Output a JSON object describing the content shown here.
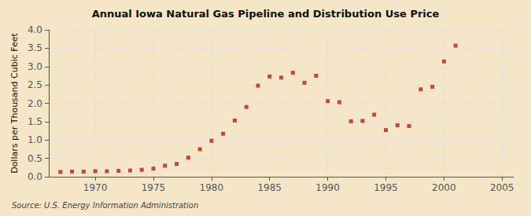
{
  "chart_data": {
    "type": "scatter",
    "title": "Annual Iowa Natural Gas Pipeline and Distribution Use Price",
    "ylabel": "Dollars per Thousand Cubic Feet",
    "annotations": [
      "Source: U.S. Energy Information Administration"
    ],
    "x": [
      1967,
      1968,
      1969,
      1970,
      1971,
      1972,
      1973,
      1974,
      1975,
      1976,
      1977,
      1978,
      1979,
      1980,
      1981,
      1982,
      1983,
      1984,
      1985,
      1986,
      1987,
      1988,
      1989,
      1990,
      1991,
      1992,
      1993,
      1994,
      1995,
      1996,
      1997,
      1998,
      1999,
      2000,
      2001
    ],
    "values": [
      0.13,
      0.14,
      0.14,
      0.15,
      0.15,
      0.16,
      0.17,
      0.19,
      0.22,
      0.3,
      0.35,
      0.52,
      0.75,
      0.98,
      1.17,
      1.53,
      1.9,
      2.48,
      2.73,
      2.7,
      2.83,
      2.56,
      2.75,
      2.06,
      2.03,
      1.51,
      1.52,
      1.69,
      1.27,
      1.4,
      1.38,
      2.38,
      2.45,
      3.14,
      3.57
    ],
    "color": "#b22020",
    "background_color": "#f5e6c8",
    "marker": "square",
    "xlim": [
      1966,
      2006
    ],
    "xticks": [
      1970,
      1975,
      1980,
      1985,
      1990,
      1995,
      2000,
      2005
    ],
    "ylim": [
      0,
      4
    ],
    "yticks": [
      {
        "value": 0,
        "label": "0.0"
      },
      0.5,
      {
        "value": 1,
        "label": "1.0"
      },
      1.5,
      {
        "value": 2,
        "label": "2.0"
      },
      2.5,
      {
        "value": 3,
        "label": "3.0"
      },
      3.5,
      {
        "value": 4,
        "label": "4.0"
      }
    ],
    "grid": true
  }
}
